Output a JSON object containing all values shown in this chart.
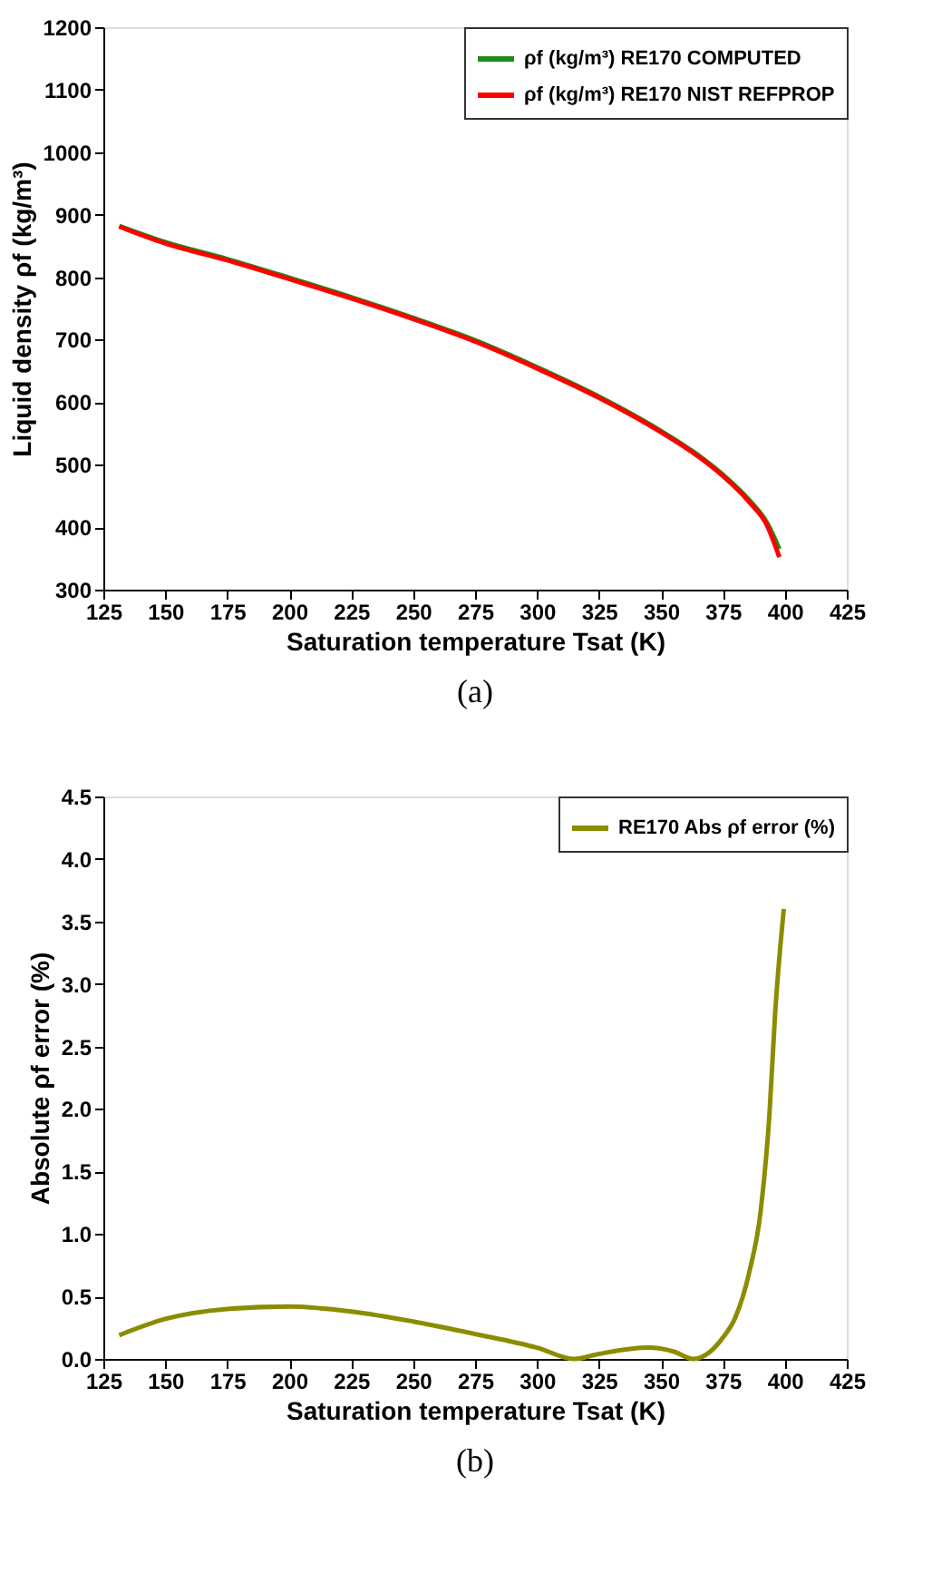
{
  "chart_data": [
    {
      "type": "line",
      "xlabel": "Saturation temperature  Tsat (K)",
      "ylabel": "Liquid density ρf (kg/m³)",
      "annotations": [
        "(a)"
      ],
      "xlim": [
        125,
        425
      ],
      "xticks": [
        125,
        150,
        175,
        200,
        225,
        250,
        275,
        300,
        325,
        350,
        375,
        400,
        425
      ],
      "ylim": [
        300,
        1200
      ],
      "yticks": [
        300,
        400,
        500,
        600,
        700,
        800,
        900,
        1000,
        1100,
        1200
      ],
      "grid": false,
      "legend": "top right",
      "marker": "none",
      "line_style": "solid",
      "series": [
        {
          "name": "ρf (kg/m³) RE170 COMPUTED",
          "color": "#1a8c1a",
          "x": [
            131.4,
            150,
            175,
            200,
            225,
            250,
            275,
            300,
            325,
            350,
            366.5,
            375,
            385.7,
            392.8,
            397.8
          ],
          "values": [
            882,
            856,
            829,
            799,
            768,
            735,
            699,
            656,
            609,
            554,
            511,
            484,
            443,
            407,
            365
          ]
        },
        {
          "name": "ρf (kg/m³) RE170 NIST REFPROP",
          "color": "#ff0000",
          "x": [
            131.4,
            150,
            175,
            200,
            225,
            250,
            275,
            300,
            325,
            350,
            366.5,
            375,
            385.7,
            392.8,
            397.8
          ],
          "values": [
            881,
            854,
            827,
            797,
            766,
            733,
            697,
            654,
            607,
            552,
            509,
            482,
            440,
            403,
            352
          ]
        }
      ]
    },
    {
      "type": "line",
      "xlabel": "Saturation temperature  Tsat (K)",
      "ylabel": "Absolute  ρf error (%)",
      "annotations": [
        "(b)"
      ],
      "xlim": [
        125,
        425
      ],
      "xticks": [
        125,
        150,
        175,
        200,
        225,
        250,
        275,
        300,
        325,
        350,
        375,
        400,
        425
      ],
      "ylim": [
        0,
        4.5
      ],
      "yticks": [
        {
          "value": 0,
          "label": "0.0"
        },
        0.5,
        {
          "value": 1,
          "label": "1.0"
        },
        1.5,
        {
          "value": 2,
          "label": "2.0"
        },
        2.5,
        {
          "value": 3,
          "label": "3.0"
        },
        3.5,
        {
          "value": 4,
          "label": "4.0"
        },
        4.5
      ],
      "grid": false,
      "legend": "top right",
      "marker": "none",
      "line_style": "solid",
      "series": [
        {
          "name": "RE170 Abs ρf error (%)",
          "color": "#8c8c00",
          "x": [
            131.4,
            150,
            175,
            200,
            225,
            250,
            275,
            300,
            315,
            325,
            345,
            355,
            363,
            370,
            375,
            380,
            385.6,
            390.3,
            393.8,
            396.1,
            399.6
          ],
          "values": [
            0.19,
            0.32,
            0.4,
            0.42,
            0.38,
            0.3,
            0.2,
            0.09,
            0.0,
            0.04,
            0.09,
            0.06,
            0.0,
            0.06,
            0.17,
            0.33,
            0.69,
            1.19,
            1.96,
            2.77,
            3.6
          ]
        }
      ]
    }
  ]
}
